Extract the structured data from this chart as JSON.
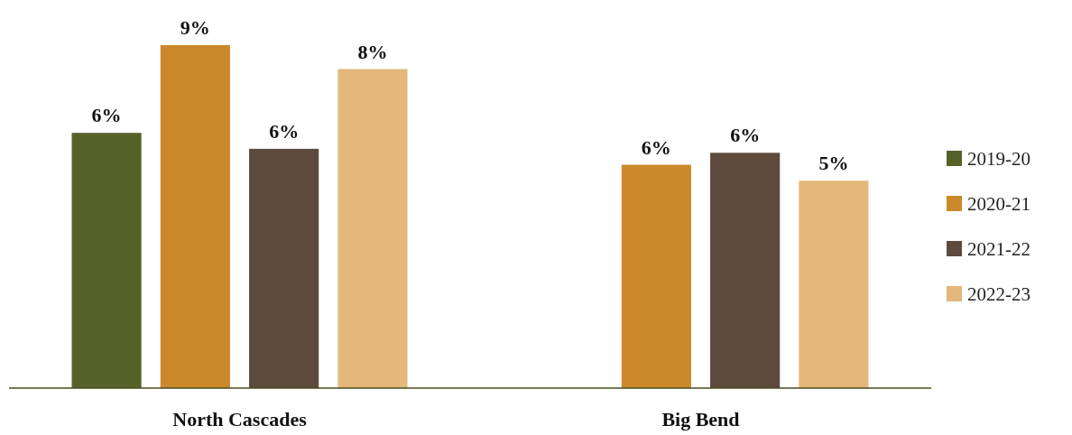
{
  "chart_data": {
    "type": "bar",
    "categories": [
      "North Cascades",
      "Big Bend"
    ],
    "series": [
      {
        "name": "2019-20",
        "color": "#57622b",
        "values": [
          6.4,
          null
        ],
        "value_labels": [
          "6%",
          null
        ]
      },
      {
        "name": "2020-21",
        "color": "#cc892c",
        "values": [
          8.6,
          5.6
        ],
        "value_labels": [
          "9%",
          "6%"
        ]
      },
      {
        "name": "2021-22",
        "color": "#5e4a3c",
        "values": [
          6.0,
          5.9
        ],
        "value_labels": [
          "6%",
          "6%"
        ]
      },
      {
        "name": "2022-23",
        "color": "#e3b87a",
        "values": [
          8.0,
          5.2
        ],
        "value_labels": [
          "8%",
          "5%"
        ]
      }
    ],
    "legend": "right"
  }
}
